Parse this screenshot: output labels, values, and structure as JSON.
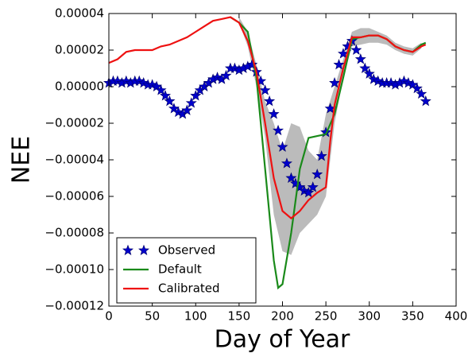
{
  "chart_data": {
    "type": "line",
    "xlabel": "Day of Year",
    "ylabel": "NEE",
    "xlim": [
      0,
      400
    ],
    "xticks": [
      0,
      50,
      100,
      150,
      200,
      250,
      300,
      350,
      400
    ],
    "ylim": [
      -0.00012,
      4e-05
    ],
    "yticks": [
      {
        "value": 4e-05,
        "label": "0.00004"
      },
      {
        "value": 2e-05,
        "label": "0.00002"
      },
      {
        "value": 0,
        "label": "0.00000"
      },
      {
        "value": -2e-05,
        "label": "−0.00002"
      },
      {
        "value": -4e-05,
        "label": "−0.00004"
      },
      {
        "value": -6e-05,
        "label": "−0.00006"
      },
      {
        "value": -8e-05,
        "label": "−0.00008"
      },
      {
        "value": -0.0001,
        "label": "−0.00010"
      },
      {
        "value": -0.00012,
        "label": "−0.00012"
      }
    ],
    "legend": "lower left",
    "band": {
      "color": "#bbbbbb",
      "x": [
        150,
        160,
        170,
        180,
        190,
        200,
        210,
        220,
        230,
        240,
        250,
        260,
        270,
        280,
        290,
        300,
        310,
        320,
        330,
        340,
        350,
        360
      ],
      "lower": [
        3.5e-05,
        2.2e-05,
        0,
        -2.8e-05,
        -7e-05,
        -9e-05,
        -9.2e-05,
        -8e-05,
        -7.5e-05,
        -7e-05,
        -6e-05,
        -2e-05,
        5e-06,
        2.2e-05,
        2.3e-05,
        2.4e-05,
        2.4e-05,
        2.3e-05,
        2e-05,
        1.8e-05,
        1.7e-05,
        2.1e-05
      ],
      "upper": [
        3.8e-05,
        3e-05,
        1.2e-05,
        -8e-06,
        -2e-05,
        -3.5e-05,
        -2e-05,
        -2.2e-05,
        -3.5e-05,
        -4e-05,
        -1.5e-05,
        0,
        1.5e-05,
        3e-05,
        3.2e-05,
        3.2e-05,
        3e-05,
        2.8e-05,
        2.4e-05,
        2.2e-05,
        2.1e-05,
        2.4e-05
      ]
    },
    "series": [
      {
        "name": "Observed",
        "color": "#0000cc",
        "marker": "star",
        "x": [
          0,
          5,
          10,
          15,
          20,
          25,
          30,
          35,
          40,
          45,
          50,
          55,
          60,
          65,
          70,
          75,
          80,
          85,
          90,
          95,
          100,
          105,
          110,
          115,
          120,
          125,
          130,
          135,
          140,
          145,
          150,
          155,
          160,
          165,
          170,
          175,
          180,
          185,
          190,
          195,
          200,
          205,
          210,
          215,
          220,
          225,
          230,
          235,
          240,
          245,
          250,
          255,
          260,
          265,
          270,
          275,
          280,
          285,
          290,
          295,
          300,
          305,
          310,
          315,
          320,
          325,
          330,
          335,
          340,
          345,
          350,
          355,
          360,
          365
        ],
        "values": [
          2e-06,
          3e-06,
          3e-06,
          2e-06,
          3e-06,
          2e-06,
          3e-06,
          3e-06,
          2e-06,
          1e-06,
          1e-06,
          0,
          -2e-06,
          -5e-06,
          -8e-06,
          -1.2e-05,
          -1.4e-05,
          -1.5e-05,
          -1.3e-05,
          -9e-06,
          -5e-06,
          -2e-06,
          0,
          2e-06,
          4e-06,
          5e-06,
          4e-06,
          6e-06,
          1e-05,
          1e-05,
          9e-06,
          1e-05,
          1.1e-05,
          1.2e-05,
          8e-06,
          3e-06,
          -2e-06,
          -8e-06,
          -1.5e-05,
          -2.4e-05,
          -3.3e-05,
          -4.2e-05,
          -5e-05,
          -5.3e-05,
          -5.5e-05,
          -5.7e-05,
          -5.8e-05,
          -5.5e-05,
          -4.8e-05,
          -3.8e-05,
          -2.5e-05,
          -1.2e-05,
          2e-06,
          1.2e-05,
          1.8e-05,
          2.2e-05,
          2.5e-05,
          2e-05,
          1.5e-05,
          1e-05,
          7e-06,
          4e-06,
          3e-06,
          2e-06,
          2e-06,
          2e-06,
          1e-06,
          2e-06,
          3e-06,
          2e-06,
          1e-06,
          -1e-06,
          -4e-06,
          -8e-06
        ]
      },
      {
        "name": "Default",
        "color": "#1a8a1a",
        "marker": "line",
        "x": [
          140,
          150,
          160,
          170,
          180,
          190,
          195,
          200,
          210,
          220,
          230,
          240,
          250,
          260,
          270,
          280,
          290,
          300,
          310,
          320,
          330,
          340,
          350,
          360,
          365
        ],
        "values": [
          3.8e-05,
          3.5e-05,
          3e-05,
          5e-06,
          -4.5e-05,
          -9.5e-05,
          -0.00011,
          -0.000108,
          -8e-05,
          -4.5e-05,
          -2.8e-05,
          -2.7e-05,
          -2.6e-05,
          -1.5e-05,
          5e-06,
          2.6e-05,
          2.7e-05,
          2.8e-05,
          2.8e-05,
          2.6e-05,
          2.2e-05,
          2e-05,
          1.9e-05,
          2.3e-05,
          2.4e-05
        ]
      },
      {
        "name": "Calibrated",
        "color": "#ee1111",
        "marker": "line",
        "x": [
          0,
          10,
          20,
          30,
          40,
          50,
          60,
          70,
          80,
          90,
          100,
          110,
          120,
          130,
          140,
          150,
          160,
          170,
          180,
          190,
          200,
          210,
          220,
          230,
          240,
          250,
          255,
          260,
          270,
          280,
          290,
          300,
          310,
          320,
          330,
          340,
          350,
          360,
          365
        ],
        "values": [
          1.3e-05,
          1.5e-05,
          1.9e-05,
          2e-05,
          2e-05,
          2e-05,
          2.2e-05,
          2.3e-05,
          2.5e-05,
          2.7e-05,
          3e-05,
          3.3e-05,
          3.6e-05,
          3.7e-05,
          3.8e-05,
          3.5e-05,
          2.5e-05,
          8e-06,
          -2e-05,
          -5e-05,
          -6.8e-05,
          -7.2e-05,
          -6.8e-05,
          -6.2e-05,
          -5.8e-05,
          -5.5e-05,
          -3e-05,
          -1e-05,
          1e-05,
          2.7e-05,
          2.7e-05,
          2.8e-05,
          2.8e-05,
          2.6e-05,
          2.2e-05,
          2e-05,
          1.9e-05,
          2.2e-05,
          2.3e-05
        ]
      }
    ]
  }
}
